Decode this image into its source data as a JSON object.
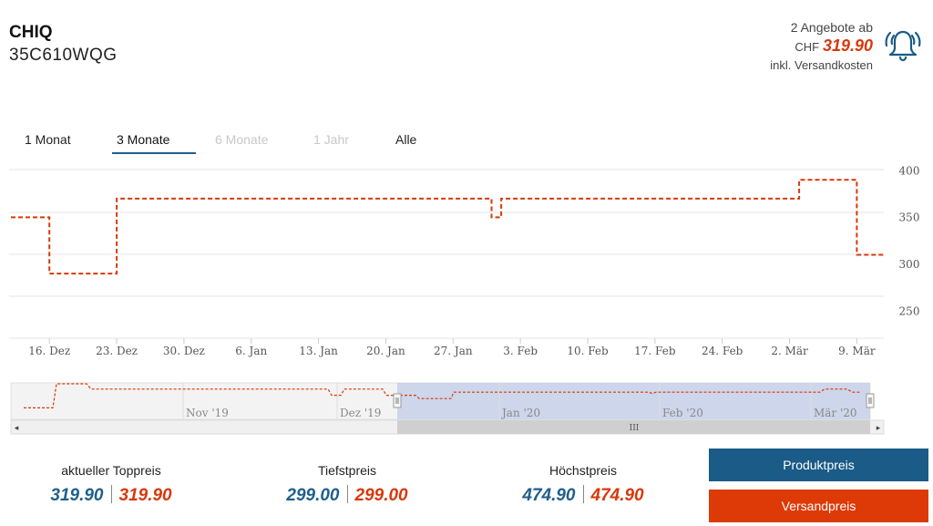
{
  "product": {
    "brand": "CHIQ",
    "model": "35C610WQG"
  },
  "offer": {
    "count_text": "2 Angebote ab",
    "currency": "CHF",
    "price": "319.90",
    "shipping_note": "inkl. Versandkosten"
  },
  "tabs": [
    {
      "label": "1 Monat",
      "state": "enabled"
    },
    {
      "label": "3 Monate",
      "state": "active"
    },
    {
      "label": "6 Monate",
      "state": "disabled"
    },
    {
      "label": "1 Jahr",
      "state": "disabled"
    },
    {
      "label": "Alle",
      "state": "enabled"
    }
  ],
  "chart_data": {
    "type": "line",
    "title": "",
    "xlabel": "",
    "ylabel": "",
    "ylim": [
      230,
      410
    ],
    "y_ticks": [
      250,
      300,
      350,
      400
    ],
    "x_ticks": [
      "16. Dez",
      "23. Dez",
      "30. Dez",
      "6. Jan",
      "13. Jan",
      "20. Jan",
      "27. Jan",
      "3. Feb",
      "10. Feb",
      "17. Feb",
      "24. Feb",
      "2. Mär",
      "9. Mär"
    ],
    "grid": true,
    "color": "#d9380a",
    "line_style": "dashed step",
    "series": [
      {
        "points": [
          [
            "12. Dez",
            359
          ],
          [
            "16. Dez",
            359
          ],
          [
            "16. Dez",
            299
          ],
          [
            "23. Dez",
            299
          ],
          [
            "23. Dez",
            379
          ],
          [
            "31. Jan",
            379
          ],
          [
            "31. Jan",
            359
          ],
          [
            "1. Feb",
            359
          ],
          [
            "1. Feb",
            379
          ],
          [
            "3. Mär",
            379
          ],
          [
            "3. Mär",
            399
          ],
          [
            "9. Mär",
            399
          ],
          [
            "9. Mär",
            319
          ],
          [
            "12. Mär",
            319
          ]
        ]
      }
    ],
    "navigator": {
      "labels": [
        "Nov '19",
        "Dez '19",
        "Jan '20",
        "Feb '20",
        "Mär '20"
      ],
      "scroll_grip": "III",
      "scroll_left": "◂",
      "scroll_right": "▸"
    }
  },
  "stats": [
    {
      "label": "aktueller Toppreis",
      "product": "319.90",
      "shipping": "319.90"
    },
    {
      "label": "Tiefstpreis",
      "product": "299.00",
      "shipping": "299.00"
    },
    {
      "label": "Höchstpreis",
      "product": "474.90",
      "shipping": "474.90"
    }
  ],
  "buttons": {
    "product_price": "Produktpreis",
    "shipping_price": "Versandpreis"
  },
  "icons": {
    "alert": "bell-ringing-icon"
  },
  "colors": {
    "blue": "#1a5b87",
    "red": "#dd3a07"
  }
}
